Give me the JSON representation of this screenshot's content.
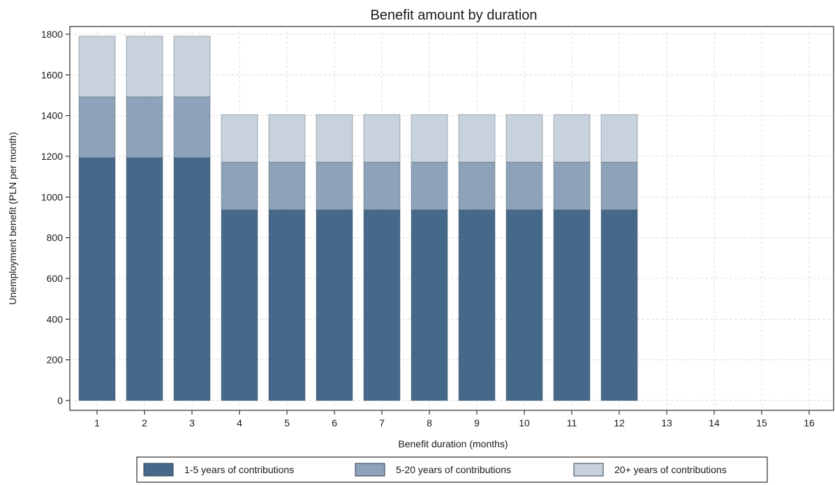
{
  "chart_data": {
    "type": "bar",
    "stacked": true,
    "title": "Benefit amount by duration",
    "xlabel": "Benefit duration (months)",
    "ylabel": "Unemployment benefit (PLN per month)",
    "categories": [
      "1",
      "2",
      "3",
      "4",
      "5",
      "6",
      "7",
      "8",
      "9",
      "10",
      "11",
      "12",
      "13",
      "14",
      "15",
      "16"
    ],
    "ylim": [
      0,
      1800
    ],
    "yticks": [
      0,
      200,
      400,
      600,
      800,
      1000,
      1200,
      1400,
      1600,
      1800
    ],
    "grid": true,
    "legend_position": "bottom",
    "series": [
      {
        "name": "1-5 years of contributions",
        "color": "#46698a",
        "top_values": [
          1193,
          1193,
          1193,
          937,
          937,
          937,
          937,
          937,
          937,
          937,
          937,
          937,
          null,
          null,
          null,
          null
        ]
      },
      {
        "name": "5-20 years of contributions",
        "color": "#8ea3b9",
        "top_values": [
          1492,
          1492,
          1492,
          1171,
          1171,
          1171,
          1171,
          1171,
          1171,
          1171,
          1171,
          1171,
          null,
          null,
          null,
          null
        ]
      },
      {
        "name": "20+ years of contributions",
        "color": "#c8d2dd",
        "top_values": [
          1790,
          1790,
          1790,
          1405,
          1405,
          1405,
          1405,
          1405,
          1405,
          1405,
          1405,
          1405,
          null,
          null,
          null,
          null
        ]
      }
    ]
  }
}
